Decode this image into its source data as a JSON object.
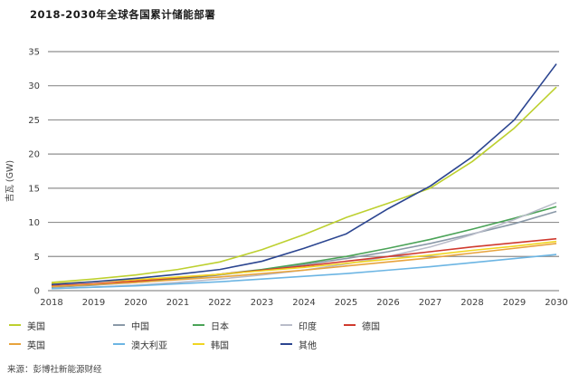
{
  "title": "2018-2030年全球各国累计储能部署",
  "source": "来源：彭博社新能源财经",
  "chart_data": {
    "type": "line",
    "title": "2018-2030年全球各国累计储能部署",
    "xlabel": "",
    "ylabel": "吉瓦 (GW)",
    "x": [
      2018,
      2019,
      2020,
      2021,
      2022,
      2023,
      2024,
      2025,
      2026,
      2027,
      2028,
      2029,
      2030
    ],
    "ylim": [
      0,
      35
    ],
    "ytick_step": 5,
    "grid": "horizontal-only",
    "legend_position": "bottom",
    "series": [
      {
        "name": "美国",
        "color": "#bdd02f",
        "values": [
          1.2,
          1.7,
          2.3,
          3.1,
          4.2,
          6.0,
          8.2,
          10.7,
          12.8,
          15.0,
          18.9,
          23.8,
          29.8
        ]
      },
      {
        "name": "中国",
        "color": "#8a99a8",
        "values": [
          0.5,
          0.8,
          1.2,
          1.7,
          2.3,
          3.0,
          3.8,
          4.7,
          5.7,
          6.9,
          8.3,
          9.8,
          11.6
        ]
      },
      {
        "name": "日本",
        "color": "#4aa357",
        "values": [
          0.6,
          0.9,
          1.3,
          1.8,
          2.4,
          3.1,
          4.0,
          5.0,
          6.2,
          7.5,
          9.0,
          10.6,
          12.3
        ]
      },
      {
        "name": "印度",
        "color": "#b9bcc9",
        "values": [
          0.3,
          0.5,
          0.8,
          1.2,
          1.7,
          2.3,
          3.0,
          3.9,
          5.0,
          6.4,
          8.2,
          10.4,
          12.9
        ]
      },
      {
        "name": "德国",
        "color": "#d03a2e",
        "values": [
          0.7,
          1.0,
          1.4,
          1.9,
          2.4,
          3.0,
          3.6,
          4.3,
          5.0,
          5.7,
          6.4,
          7.0,
          7.6
        ]
      },
      {
        "name": "英国",
        "color": "#e8a33d",
        "values": [
          0.6,
          0.9,
          1.2,
          1.6,
          2.0,
          2.5,
          3.0,
          3.6,
          4.2,
          4.8,
          5.5,
          6.2,
          6.9
        ]
      },
      {
        "name": "澳大利亚",
        "color": "#6cb5e3",
        "values": [
          0.3,
          0.5,
          0.7,
          1.0,
          1.3,
          1.7,
          2.1,
          2.5,
          3.0,
          3.5,
          4.1,
          4.7,
          5.3
        ]
      },
      {
        "name": "韩国",
        "color": "#f0d522",
        "values": [
          1.0,
          1.3,
          1.6,
          2.0,
          2.4,
          2.9,
          3.4,
          4.0,
          4.6,
          5.2,
          5.9,
          6.5,
          7.2
        ]
      },
      {
        "name": "其他",
        "color": "#2b4590",
        "values": [
          0.9,
          1.3,
          1.8,
          2.4,
          3.1,
          4.3,
          6.2,
          8.3,
          12.0,
          15.3,
          19.6,
          25.0,
          33.2
        ]
      }
    ]
  }
}
